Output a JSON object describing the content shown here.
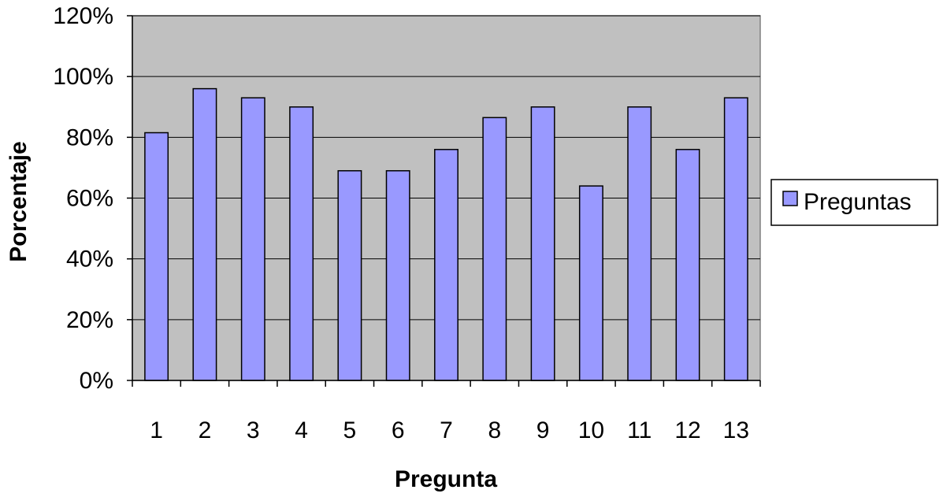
{
  "chart_data": {
    "type": "bar",
    "categories": [
      "1",
      "2",
      "3",
      "4",
      "5",
      "6",
      "7",
      "8",
      "9",
      "10",
      "11",
      "12",
      "13"
    ],
    "series": [
      {
        "name": "Preguntas",
        "values": [
          0.815,
          0.96,
          0.93,
          0.9,
          0.69,
          0.69,
          0.76,
          0.865,
          0.9,
          0.64,
          0.9,
          0.76,
          0.93
        ],
        "color": "#9999ff"
      }
    ],
    "ylim": [
      0,
      1.2
    ],
    "yticks": [
      0,
      0.2,
      0.4,
      0.6,
      0.8,
      1.0,
      1.2
    ],
    "ytick_labels": [
      "0%",
      "20%",
      "40%",
      "60%",
      "80%",
      "100%",
      "120%"
    ],
    "xlabel": "Pregunta",
    "ylabel": "Porcentaje",
    "title": "",
    "grid": true,
    "legend": "right",
    "plot_background": "#c0c0c0",
    "page_background": "#ffffff",
    "gridline_color": "#000000"
  }
}
